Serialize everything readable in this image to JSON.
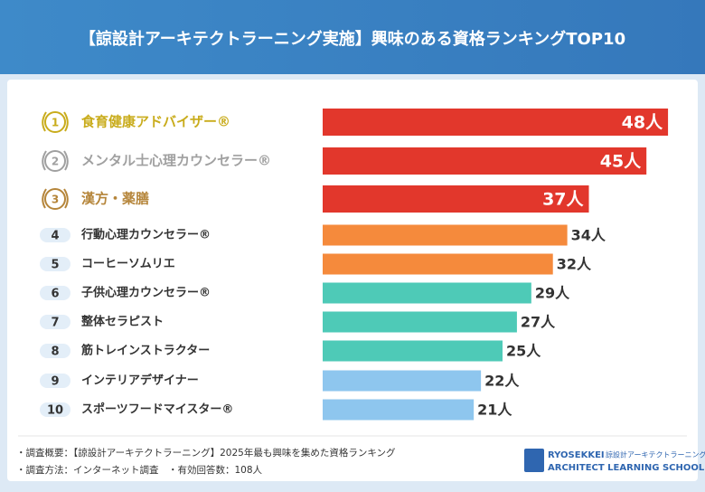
{
  "chart_data": {
    "type": "bar",
    "title": "【諒設計アーキテクトラーニング実施】興味のある資格ランキングTOP10",
    "ranks": [
      1,
      2,
      3,
      4,
      5,
      6,
      7,
      8,
      9,
      10
    ],
    "categories": [
      "食育健康アドバイザー®",
      "メンタル士心理カウンセラー®",
      "漢方・薬膳",
      "行動心理カウンセラー®",
      "コーヒーソムリエ",
      "子供心理カウンセラー®",
      "整体セラピスト",
      "筋トレインストラクター",
      "インテリアデザイナー",
      "スポーツフードマイスター®"
    ],
    "values": [
      48,
      45,
      37,
      34,
      32,
      29,
      27,
      25,
      22,
      21
    ],
    "value_labels": [
      "48人",
      "45人",
      "37人",
      "34人",
      "32人",
      "29人",
      "27人",
      "25人",
      "22人",
      "21人"
    ],
    "colors": [
      "#e2372c",
      "#e2372c",
      "#e2372c",
      "#f58a3c",
      "#f58a3c",
      "#4ecab7",
      "#4ecab7",
      "#4ecab7",
      "#8ec6ee",
      "#8ec6ee"
    ],
    "rank_colors": [
      "#c9ac1c",
      "#a0a0a0",
      "#b5853a"
    ]
  },
  "footer": {
    "notes": [
      "・調査概要：【諒設計アーキテクトラーニング】2025年最も興味を集めた資格ランキング",
      "・調査方法：インターネット調査　・有効回答数：108人"
    ],
    "logo": {
      "brand": "RYOSEKKEI",
      "brand_jp": "諒設計アーキテクトラーニング",
      "school": "ARCHITECT LEARNING SCHOOL"
    }
  }
}
